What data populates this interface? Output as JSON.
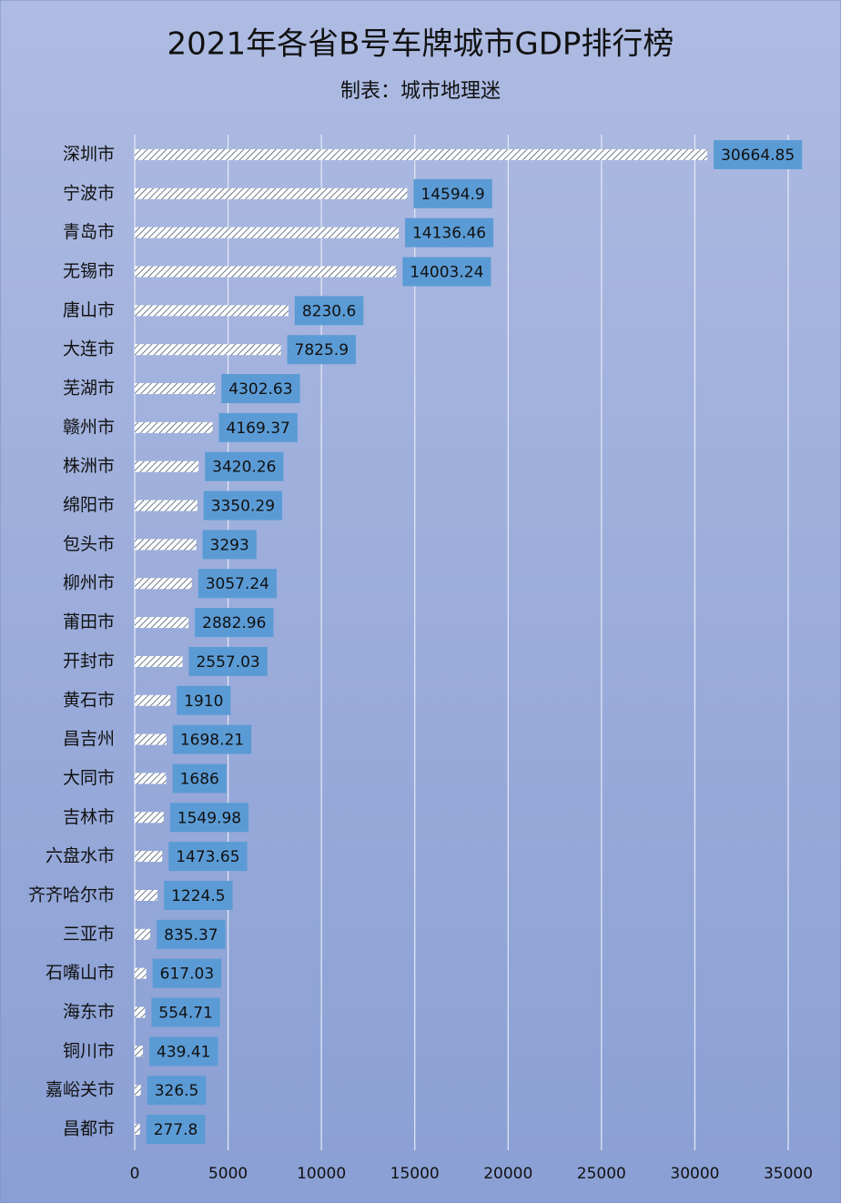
{
  "chart_data": {
    "type": "bar",
    "orientation": "horizontal",
    "title": "2021年各省B号车牌城市GDP排行榜",
    "subtitle": "制表：城市地理迷",
    "categories": [
      "深圳市",
      "宁波市",
      "青岛市",
      "无锡市",
      "唐山市",
      "大连市",
      "芜湖市",
      "赣州市",
      "株洲市",
      "绵阳市",
      "包头市",
      "柳州市",
      "莆田市",
      "开封市",
      "黄石市",
      "昌吉州",
      "大同市",
      "吉林市",
      "六盘水市",
      "齐齐哈尔市",
      "三亚市",
      "石嘴山市",
      "海东市",
      "铜川市",
      "嘉峪关市",
      "昌都市"
    ],
    "values": [
      30664.85,
      14594.9,
      14136.46,
      14003.24,
      8230.6,
      7825.9,
      4302.63,
      4169.37,
      3420.26,
      3350.29,
      3293,
      3057.24,
      2882.96,
      2557.03,
      1910,
      1698.21,
      1686,
      1549.98,
      1473.65,
      1224.5,
      835.37,
      617.03,
      554.71,
      439.41,
      326.5,
      277.8
    ],
    "xlim": [
      0,
      35000
    ],
    "xticks": [
      0,
      5000,
      10000,
      15000,
      20000,
      25000,
      30000,
      35000
    ],
    "grid": true,
    "label_color": "#5b9bd5"
  }
}
